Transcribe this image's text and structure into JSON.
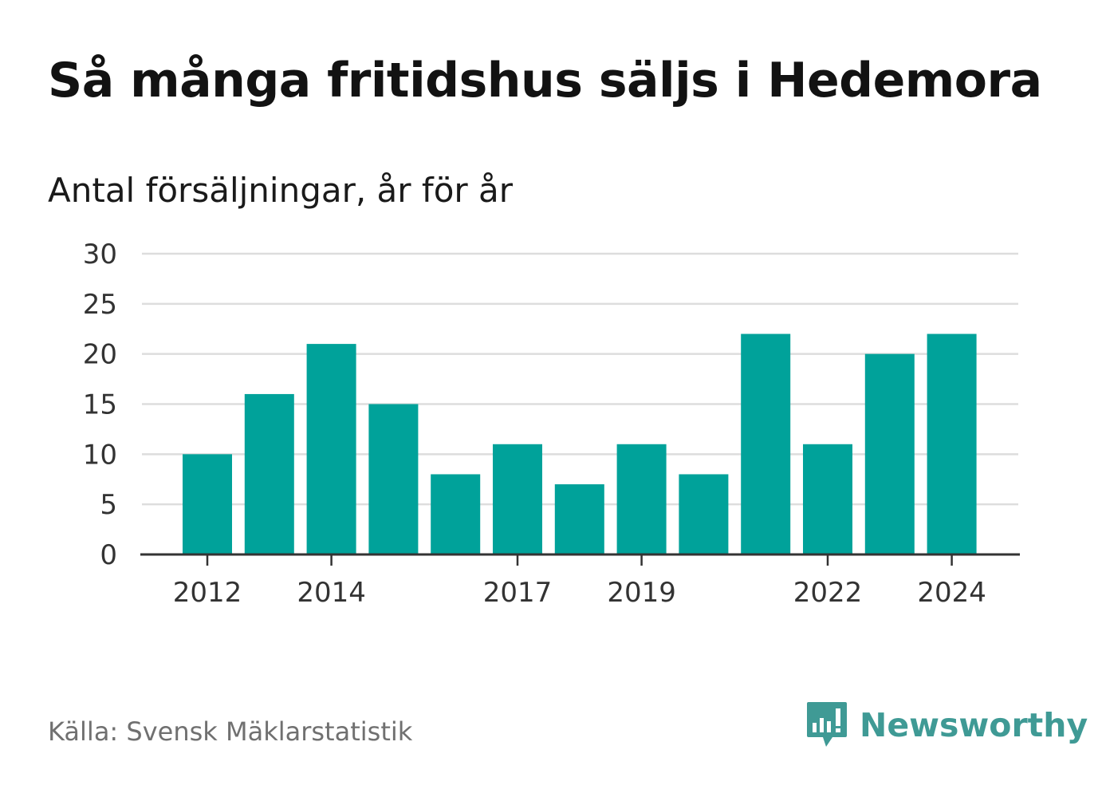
{
  "title": "Så många fritidshus säljs i Hedemora",
  "subtitle": "Antal försäljningar, år för år",
  "source": "Källa: Svensk Mäklarstatistik",
  "brand": {
    "name": "Newsworthy",
    "icon": "newsworthy-logo-icon",
    "color": "#3f9a95"
  },
  "colors": {
    "bar": "#00a29a",
    "grid": "#dddddd",
    "axis": "#333333"
  },
  "chart_data": {
    "type": "bar",
    "categories": [
      "2012",
      "2013",
      "2014",
      "2015",
      "2016",
      "2017",
      "2018",
      "2019",
      "2020",
      "2021",
      "2022",
      "2023",
      "2024"
    ],
    "values": [
      10,
      16,
      21,
      15,
      8,
      11,
      7,
      11,
      8,
      22,
      11,
      20,
      22
    ],
    "x_tick_labels": [
      "2012",
      "2014",
      "2017",
      "2019",
      "2022",
      "2024"
    ],
    "y_ticks": [
      0,
      5,
      10,
      15,
      20,
      25,
      30
    ],
    "ylim": [
      0,
      30
    ],
    "grid": true,
    "legend": false,
    "xlabel": "",
    "ylabel": ""
  }
}
